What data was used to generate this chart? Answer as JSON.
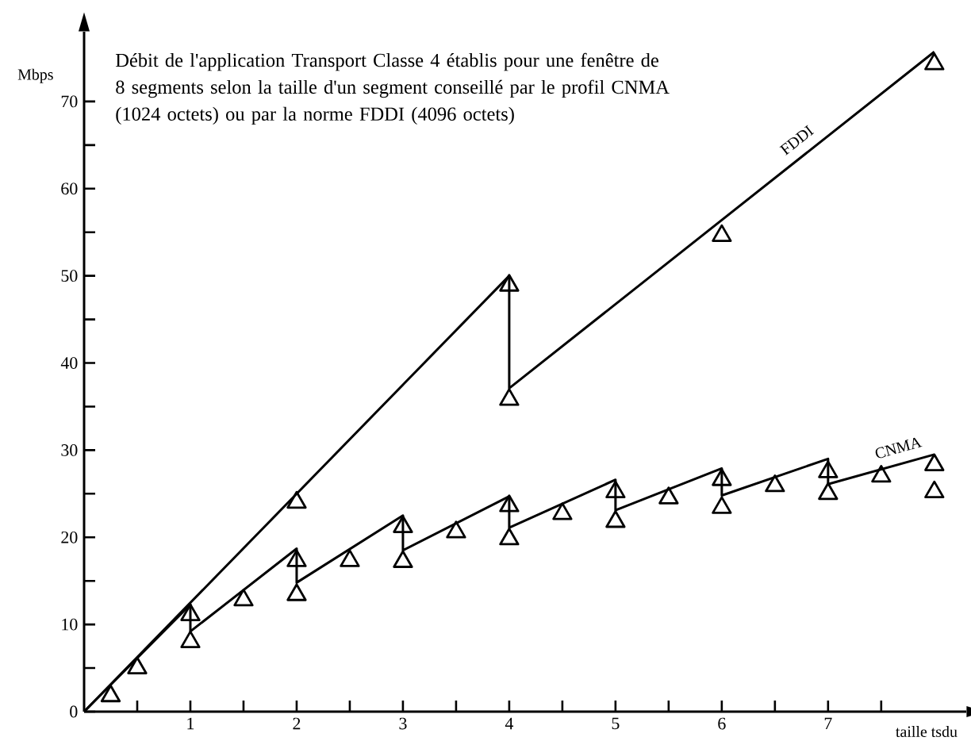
{
  "chart_data": {
    "type": "line",
    "title": "Débit de l'application Transport Classe 4 établis pour une fenêtre de 8 segments selon la taille d'un segment conseillé par le profil CNMA (1024 octets) ou par la norme FDDI (4096 octets)",
    "xlabel": "taille tsdu",
    "ylabel": "Mbps",
    "xlim": [
      0,
      8.3
    ],
    "ylim": [
      0,
      78
    ],
    "xticks": [
      {
        "value": 0.5,
        "label": null
      },
      1,
      {
        "value": 1.5,
        "label": null
      },
      2,
      {
        "value": 2.5,
        "label": null
      },
      3,
      {
        "value": 3.5,
        "label": null
      },
      4,
      {
        "value": 4.5,
        "label": null
      },
      5,
      {
        "value": 5.5,
        "label": null
      },
      6,
      {
        "value": 6.5,
        "label": null
      },
      7,
      {
        "value": 7.5,
        "label": null
      }
    ],
    "yticks": [
      0,
      {
        "value": 5,
        "label": null
      },
      10,
      {
        "value": 15,
        "label": null
      },
      20,
      {
        "value": 25,
        "label": null
      },
      30,
      {
        "value": 35,
        "label": null
      },
      40,
      {
        "value": 45,
        "label": null
      },
      50,
      {
        "value": 55,
        "label": null
      },
      60,
      {
        "value": 65,
        "label": null
      },
      70
    ],
    "series": [
      {
        "name": "FDDI",
        "color": "#000000",
        "marker": "none",
        "line_style": "solid",
        "x": [
          0,
          4,
          4,
          8
        ],
        "values": [
          0,
          50,
          37.1,
          75.7
        ]
      },
      {
        "name": "CNMA",
        "color": "#000000",
        "marker": "none",
        "line_style": "solid",
        "x": [
          0,
          1,
          1,
          2,
          2,
          3,
          3,
          4,
          4,
          5,
          5,
          6,
          6,
          7,
          7,
          8
        ],
        "values": [
          0,
          12.3,
          9.2,
          18.7,
          14.8,
          22.5,
          18.5,
          24.7,
          21.1,
          26.6,
          23.1,
          27.9,
          24.8,
          29.0,
          26.1,
          29.5
        ]
      },
      {
        "type": "scatter",
        "color": "#000000",
        "marker": "triangle",
        "x": [
          0.25,
          0.5,
          1,
          1,
          1.5,
          2,
          2,
          2,
          2.5,
          3,
          3,
          3.5,
          4,
          4,
          4,
          4,
          4.5,
          5,
          5,
          5.5,
          6,
          6,
          6,
          6.5,
          7,
          7,
          7.5,
          8,
          8,
          8
        ],
        "values": [
          1.8,
          5.0,
          11.1,
          8.0,
          12.8,
          24.0,
          17.3,
          13.4,
          17.3,
          21.2,
          17.2,
          20.6,
          48.9,
          35.8,
          23.6,
          19.8,
          22.7,
          25.2,
          21.8,
          24.5,
          54.6,
          26.6,
          23.4,
          25.9,
          27.5,
          25.0,
          27.0,
          74.3,
          28.3,
          25.2
        ]
      }
    ]
  }
}
